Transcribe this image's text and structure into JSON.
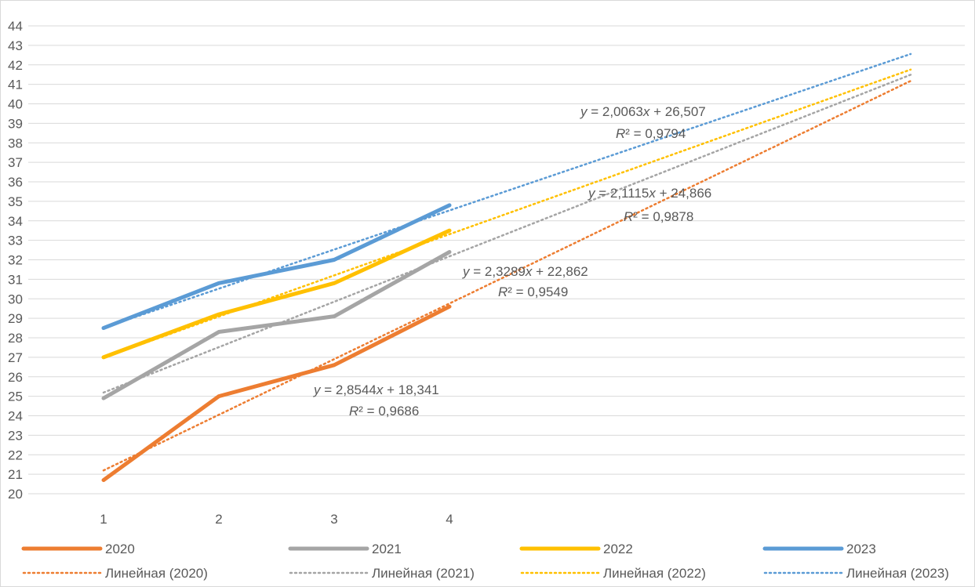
{
  "chart_data": {
    "type": "line",
    "x": [
      1,
      2,
      3,
      4
    ],
    "ylim": [
      20,
      44
    ],
    "y_ticks": [
      "20",
      "21",
      "22",
      "23",
      "24",
      "25",
      "26",
      "27",
      "28",
      "29",
      "30",
      "31",
      "32",
      "33",
      "34",
      "35",
      "36",
      "37",
      "38",
      "39",
      "40",
      "41",
      "42",
      "43",
      "44"
    ],
    "x_ticks": [
      "1",
      "2",
      "3",
      "4"
    ],
    "grid": "horizontal",
    "legend_position": "bottom",
    "trend_extends_to_x": 8,
    "series": [
      {
        "name": "2020",
        "values": [
          20.7,
          25.0,
          26.6,
          29.6
        ],
        "color": "#ED7D31",
        "trend": {
          "name": "Линейная (2020)",
          "slope": 2.8544,
          "intercept": 18.341,
          "equation_parts": [
            "y",
            " = 2,8544",
            "x",
            " + 18,341"
          ],
          "r2_parts": [
            "R",
            "² = 0,9686"
          ]
        }
      },
      {
        "name": "2021",
        "values": [
          24.9,
          28.3,
          29.1,
          32.4
        ],
        "color": "#A5A5A5",
        "trend": {
          "name": "Линейная (2021)",
          "slope": 2.3289,
          "intercept": 22.862,
          "equation_parts": [
            "y",
            " = 2,3289",
            "x",
            " + 22,862"
          ],
          "r2_parts": [
            "R",
            "² = 0,9549"
          ]
        }
      },
      {
        "name": "2022",
        "values": [
          27.0,
          29.2,
          30.8,
          33.5
        ],
        "color": "#FFC000",
        "trend": {
          "name": "Линейная (2022)",
          "slope": 2.1115,
          "intercept": 24.866,
          "equation_parts": [
            "y",
            " = 2,1115",
            "x",
            " + 24,866"
          ],
          "r2_parts": [
            "R",
            "² = 0,9878"
          ]
        }
      },
      {
        "name": "2023",
        "values": [
          28.5,
          30.8,
          32.0,
          34.8
        ],
        "color": "#5B9BD5",
        "trend": {
          "name": "Линейная (2023)",
          "slope": 2.0063,
          "intercept": 26.507,
          "equation_parts": [
            "y",
            " = 2,0063",
            "x",
            " + 26,507"
          ],
          "r2_parts": [
            "R",
            "² = 0,9794"
          ]
        }
      }
    ]
  }
}
